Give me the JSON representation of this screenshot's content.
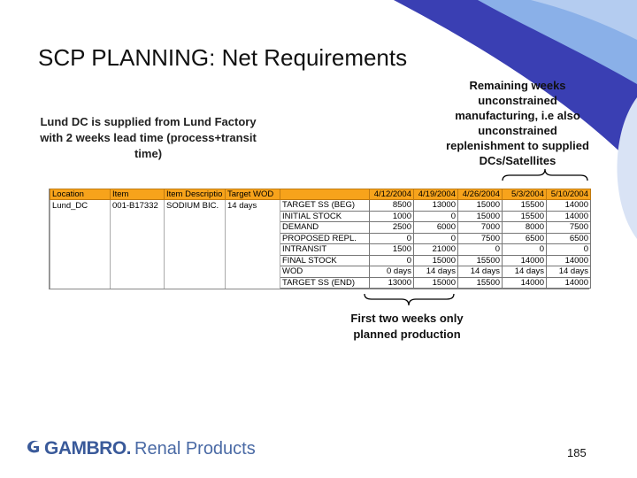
{
  "slide": {
    "title": "SCP PLANNING: Net Requirements",
    "note_left": "Lund DC is supplied from Lund Factory with 2 weeks lead time (process+transit time)",
    "note_right": "Remaining weeks unconstrained manufacturing, i.e also unconstrained replenishment to supplied DCs/Satellites",
    "note_bottom": "First two weeks only planned production",
    "page_number": "185",
    "logo_brand": "GAMBRO.",
    "logo_product": "Renal Products",
    "colors": {
      "header_fill": "#f7a31b",
      "accent_blue": "#3a3fb3",
      "accent_light_blue": "#8ab0e8",
      "logo_blue": "#3a5a9a"
    },
    "icons": [
      "gambro-logo-icon",
      "brace-icon"
    ]
  },
  "sheet": {
    "headers": {
      "location": "Location",
      "item": "Item",
      "item_desc": "Item Descriptio",
      "target_wod": "Target WOD",
      "d1": "4/12/2004",
      "d2": "4/19/2004",
      "d3": "4/26/2004",
      "d4": "5/3/2004",
      "d5": "5/10/2004"
    },
    "row_info": {
      "location": "Lund_DC",
      "item": "001-B17332",
      "item_desc": "SODIUM BIC.",
      "target_wod": "14 days"
    },
    "rows": [
      {
        "label": "TARGET SS (BEG)",
        "v": [
          "8500",
          "13000",
          "15000",
          "15500",
          "14000"
        ]
      },
      {
        "label": "INITIAL STOCK",
        "v": [
          "1000",
          "0",
          "15000",
          "15500",
          "14000"
        ]
      },
      {
        "label": "DEMAND",
        "v": [
          "2500",
          "6000",
          "7000",
          "8000",
          "7500"
        ]
      },
      {
        "label": "PROPOSED REPL.",
        "v": [
          "0",
          "0",
          "7500",
          "6500",
          "6500"
        ]
      },
      {
        "label": "INTRANSIT",
        "v": [
          "1500",
          "21000",
          "0",
          "0",
          "0"
        ]
      },
      {
        "label": "FINAL STOCK",
        "v": [
          "0",
          "15000",
          "15500",
          "14000",
          "14000"
        ]
      },
      {
        "label": "WOD",
        "v": [
          "0 days",
          "14 days",
          "14 days",
          "14 days",
          "14 days"
        ]
      },
      {
        "label": "TARGET SS (END)",
        "v": [
          "13000",
          "15000",
          "15500",
          "14000",
          "14000"
        ]
      }
    ]
  }
}
